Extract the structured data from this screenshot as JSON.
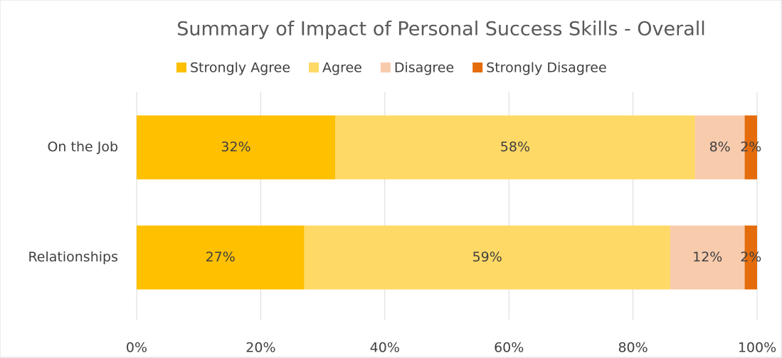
{
  "chart_data": {
    "type": "stacked_barh",
    "title": "Summary of Impact of Personal Success Skills - Overall",
    "categories": [
      "On the Job",
      "Relationships"
    ],
    "series": [
      {
        "name": "Strongly Agree",
        "color": "#FFC000",
        "values": [
          32,
          27
        ],
        "value_labels": [
          "32%",
          "27%"
        ]
      },
      {
        "name": "Agree",
        "color": "#FFD966",
        "values": [
          58,
          59
        ],
        "value_labels": [
          "58%",
          "59%"
        ]
      },
      {
        "name": "Disagree",
        "color": "#F8CBAD",
        "values": [
          8,
          12
        ],
        "value_labels": [
          "8%",
          "12%"
        ]
      },
      {
        "name": "Strongly Disagree",
        "color": "#E46C0A",
        "values": [
          2,
          2
        ],
        "value_labels": [
          "2%",
          "2%"
        ]
      }
    ],
    "xlim": [
      0,
      100
    ],
    "xticks": [
      {
        "value": 0,
        "label": "0%"
      },
      {
        "value": 20,
        "label": "20%"
      },
      {
        "value": 40,
        "label": "40%"
      },
      {
        "value": 60,
        "label": "60%"
      },
      {
        "value": 80,
        "label": "80%"
      },
      {
        "value": 100,
        "label": "100%"
      }
    ],
    "grid": true,
    "legend": "top"
  }
}
